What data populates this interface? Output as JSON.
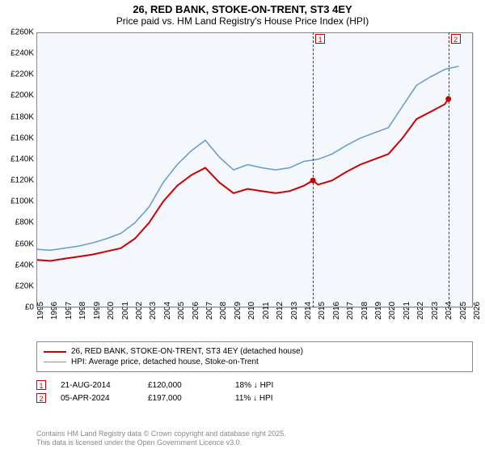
{
  "title": {
    "line1": "26, RED BANK, STOKE-ON-TRENT, ST3 4EY",
    "line2": "Price paid vs. HM Land Registry's House Price Index (HPI)"
  },
  "chart": {
    "type": "line",
    "background_color": "#f4f7fb",
    "grid_color": "#dddddd",
    "border_color": "#888888",
    "y_axis": {
      "min": 0,
      "max": 260000,
      "tick_step": 20000,
      "ticks": [
        "£0",
        "£20K",
        "£40K",
        "£60K",
        "£80K",
        "£100K",
        "£120K",
        "£140K",
        "£160K",
        "£180K",
        "£200K",
        "£220K",
        "£240K",
        "£260K"
      ]
    },
    "x_axis": {
      "min": 1995,
      "max": 2026,
      "ticks": [
        "1995",
        "1996",
        "1997",
        "1998",
        "1999",
        "2000",
        "2001",
        "2002",
        "2003",
        "2004",
        "2005",
        "2006",
        "2007",
        "2008",
        "2009",
        "2010",
        "2011",
        "2012",
        "2013",
        "2014",
        "2015",
        "2016",
        "2017",
        "2018",
        "2019",
        "2020",
        "2021",
        "2022",
        "2023",
        "2024",
        "2025",
        "2026"
      ]
    },
    "series": [
      {
        "name": "subject",
        "label": "26, RED BANK, STOKE-ON-TRENT, ST3 4EY (detached house)",
        "color": "#cc0000",
        "line_width": 2,
        "data": [
          [
            1995,
            45000
          ],
          [
            1996,
            44000
          ],
          [
            1997,
            46000
          ],
          [
            1998,
            48000
          ],
          [
            1999,
            50000
          ],
          [
            2000,
            53000
          ],
          [
            2001,
            56000
          ],
          [
            2002,
            65000
          ],
          [
            2003,
            80000
          ],
          [
            2004,
            100000
          ],
          [
            2005,
            115000
          ],
          [
            2006,
            125000
          ],
          [
            2007,
            132000
          ],
          [
            2008,
            118000
          ],
          [
            2009,
            108000
          ],
          [
            2010,
            112000
          ],
          [
            2011,
            110000
          ],
          [
            2012,
            108000
          ],
          [
            2013,
            110000
          ],
          [
            2014,
            115000
          ],
          [
            2014.64,
            120000
          ],
          [
            2015,
            116000
          ],
          [
            2016,
            120000
          ],
          [
            2017,
            128000
          ],
          [
            2018,
            135000
          ],
          [
            2019,
            140000
          ],
          [
            2020,
            145000
          ],
          [
            2021,
            160000
          ],
          [
            2022,
            178000
          ],
          [
            2023,
            185000
          ],
          [
            2024,
            192000
          ],
          [
            2024.26,
            197000
          ]
        ]
      },
      {
        "name": "hpi",
        "label": "HPI: Average price, detached house, Stoke-on-Trent",
        "color": "#6699cc",
        "line_width": 1.5,
        "data": [
          [
            1995,
            55000
          ],
          [
            1996,
            54000
          ],
          [
            1997,
            56000
          ],
          [
            1998,
            58000
          ],
          [
            1999,
            61000
          ],
          [
            2000,
            65000
          ],
          [
            2001,
            70000
          ],
          [
            2002,
            80000
          ],
          [
            2003,
            95000
          ],
          [
            2004,
            118000
          ],
          [
            2005,
            135000
          ],
          [
            2006,
            148000
          ],
          [
            2007,
            158000
          ],
          [
            2008,
            142000
          ],
          [
            2009,
            130000
          ],
          [
            2010,
            135000
          ],
          [
            2011,
            132000
          ],
          [
            2012,
            130000
          ],
          [
            2013,
            132000
          ],
          [
            2014,
            138000
          ],
          [
            2015,
            140000
          ],
          [
            2016,
            145000
          ],
          [
            2017,
            153000
          ],
          [
            2018,
            160000
          ],
          [
            2019,
            165000
          ],
          [
            2020,
            170000
          ],
          [
            2021,
            190000
          ],
          [
            2022,
            210000
          ],
          [
            2023,
            218000
          ],
          [
            2024,
            225000
          ],
          [
            2025,
            228000
          ]
        ]
      }
    ],
    "markers": [
      {
        "id": "1",
        "x": 2014.64,
        "color": "#cc0000"
      },
      {
        "id": "2",
        "x": 2024.26,
        "color": "#cc0000"
      }
    ],
    "sale_points": [
      {
        "x": 2014.64,
        "y": 120000,
        "color": "#cc0000"
      },
      {
        "x": 2024.26,
        "y": 197000,
        "color": "#cc0000"
      }
    ]
  },
  "legend": {
    "items": [
      {
        "color": "#cc0000",
        "width": 2,
        "label_key": "chart.series.0.label"
      },
      {
        "color": "#6699cc",
        "width": 1.5,
        "label_key": "chart.series.1.label"
      }
    ]
  },
  "sales": [
    {
      "badge": "1",
      "badge_color": "#cc0000",
      "date": "21-AUG-2014",
      "price": "£120,000",
      "delta": "18% ↓ HPI"
    },
    {
      "badge": "2",
      "badge_color": "#cc0000",
      "date": "05-APR-2024",
      "price": "£197,000",
      "delta": "11% ↓ HPI"
    }
  ],
  "footer": {
    "line1": "Contains HM Land Registry data © Crown copyright and database right 2025.",
    "line2": "This data is licensed under the Open Government Licence v3.0."
  }
}
